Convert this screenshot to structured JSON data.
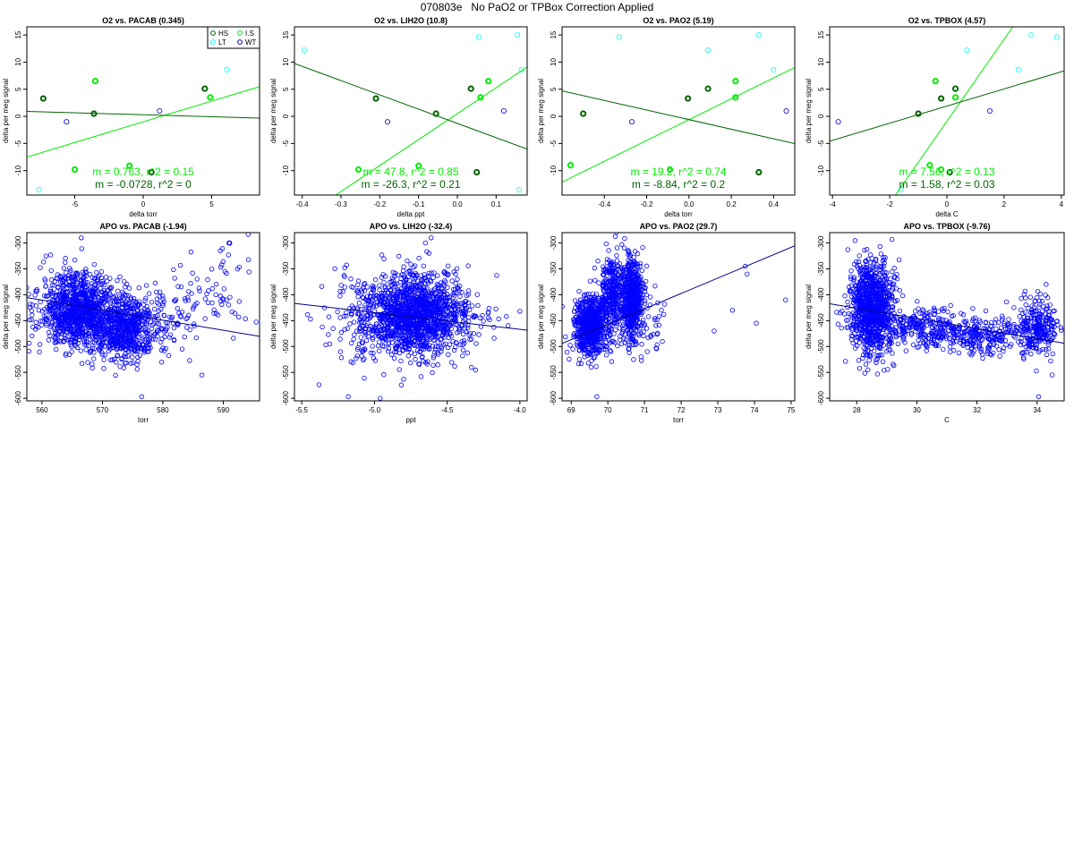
{
  "figure": {
    "title": "070803e   No PaO2 or TPBox Correction Applied"
  },
  "legend": {
    "entries": [
      {
        "label": "HS",
        "color": "#006400"
      },
      {
        "label": "I.S",
        "color": "#00ee00"
      },
      {
        "label": "LT",
        "color": "#00ffff"
      },
      {
        "label": "WT",
        "color": "#0000cd"
      }
    ]
  },
  "chart_data": [
    {
      "type": "scatter",
      "title": "O2 vs. PACAB (0.345)",
      "xlabel": "delta torr",
      "ylabel": "delta per meg signal",
      "xlim": [
        -8.5,
        8.5
      ],
      "ylim": [
        -14.5,
        16.5
      ],
      "xticks": [
        -5,
        0,
        5
      ],
      "yticks": [
        -10,
        -5,
        0,
        5,
        10,
        15
      ],
      "legend_position": "top-right",
      "series": [
        {
          "name": "HS",
          "color": "#006400",
          "bold": true,
          "x": [
            -7.3,
            -3.6,
            4.5,
            0.6
          ],
          "y": [
            3.3,
            0.5,
            5.1,
            -10.3
          ]
        },
        {
          "name": "I.S",
          "color": "#00ee00",
          "bold": true,
          "x": [
            -3.5,
            4.9,
            -5.0,
            -1.0
          ],
          "y": [
            6.5,
            3.5,
            -9.8,
            -9.1
          ]
        },
        {
          "name": "LT",
          "color": "#00ffff",
          "bold": false,
          "x": [
            -7.6,
            6.1
          ],
          "y": [
            -13.5,
            8.6
          ]
        },
        {
          "name": "WT",
          "color": "#0000cd",
          "bold": false,
          "x": [
            -5.6,
            1.2
          ],
          "y": [
            -1.0,
            1.0
          ]
        }
      ],
      "fits": [
        {
          "color": "#00ee00",
          "slope": 0.763,
          "intercept": -1.0,
          "label": "m = 0.763, r^2 = 0.15"
        },
        {
          "color": "#006400",
          "slope": -0.0728,
          "intercept": 0.3,
          "label": "m = -0.0728, r^2 = 0"
        }
      ]
    },
    {
      "type": "scatter",
      "title": "O2 vs. LIH2O (10.8)",
      "xlabel": "delta ppt",
      "ylabel": "delta per meg signal",
      "xlim": [
        -0.42,
        0.18
      ],
      "ylim": [
        -14.5,
        16.5
      ],
      "xticks": [
        -0.4,
        -0.3,
        -0.2,
        -0.1,
        0.0,
        0.1
      ],
      "yticks": [
        -10,
        -5,
        0,
        5,
        10,
        15
      ],
      "series": [
        {
          "name": "HS",
          "color": "#006400",
          "bold": true,
          "x": [
            -0.21,
            -0.055,
            0.035,
            0.05
          ],
          "y": [
            3.3,
            0.5,
            5.1,
            -10.3
          ]
        },
        {
          "name": "I.S",
          "color": "#00ee00",
          "bold": true,
          "x": [
            0.08,
            0.06,
            -0.255,
            -0.1
          ],
          "y": [
            6.5,
            3.5,
            -9.8,
            -9.1
          ]
        },
        {
          "name": "LT",
          "color": "#00ffff",
          "bold": false,
          "x": [
            -0.395,
            0.055,
            0.155,
            0.165,
            0.16
          ],
          "y": [
            12.2,
            14.6,
            15.0,
            8.6,
            -13.5
          ]
        },
        {
          "name": "WT",
          "color": "#0000cd",
          "bold": false,
          "x": [
            -0.18,
            0.12
          ],
          "y": [
            -1.0,
            1.0
          ]
        }
      ],
      "fits": [
        {
          "color": "#00ee00",
          "slope": 47.8,
          "intercept": 0.5,
          "label": "m = 47.8, r^2 = 0.85"
        },
        {
          "color": "#006400",
          "slope": -26.3,
          "intercept": -1.3,
          "label": "m = -26.3, r^2 = 0.21"
        }
      ]
    },
    {
      "type": "scatter",
      "title": "O2 vs. PAO2 (5.19)",
      "xlabel": "delta torr",
      "ylabel": "delta per meg signal",
      "xlim": [
        -0.6,
        0.5
      ],
      "ylim": [
        -14.5,
        16.5
      ],
      "xticks": [
        -0.4,
        -0.2,
        0.0,
        0.2,
        0.4
      ],
      "yticks": [
        -10,
        -5,
        0,
        5,
        10,
        15
      ],
      "series": [
        {
          "name": "HS",
          "color": "#006400",
          "bold": true,
          "x": [
            -0.5,
            -0.005,
            0.09,
            0.33
          ],
          "y": [
            0.5,
            3.3,
            5.1,
            -10.3
          ]
        },
        {
          "name": "I.S",
          "color": "#00ee00",
          "bold": true,
          "x": [
            0.22,
            0.22,
            -0.56,
            -0.09
          ],
          "y": [
            6.5,
            3.5,
            -9.0,
            -9.8
          ]
        },
        {
          "name": "LT",
          "color": "#00ffff",
          "bold": false,
          "x": [
            -0.33,
            0.09,
            0.33,
            0.4
          ],
          "y": [
            14.6,
            12.2,
            15.0,
            8.6
          ]
        },
        {
          "name": "WT",
          "color": "#0000cd",
          "bold": false,
          "x": [
            -0.27,
            0.46
          ],
          "y": [
            -1.0,
            1.0
          ]
        }
      ],
      "fits": [
        {
          "color": "#00ee00",
          "slope": 19.2,
          "intercept": -0.6,
          "label": "m = 19.2, r^2 = 0.74"
        },
        {
          "color": "#006400",
          "slope": -8.84,
          "intercept": -0.6,
          "label": "m = -8.84, r^2 = 0.2"
        }
      ]
    },
    {
      "type": "scatter",
      "title": "O2 vs. TPBOX (4.57)",
      "xlabel": "delta C",
      "ylabel": "delta per meg signal",
      "xlim": [
        -4.1,
        4.1
      ],
      "ylim": [
        -14.5,
        16.5
      ],
      "xticks": [
        -4,
        -2,
        0,
        2,
        4
      ],
      "yticks": [
        -10,
        -5,
        0,
        5,
        10,
        15
      ],
      "series": [
        {
          "name": "HS",
          "color": "#006400",
          "bold": true,
          "x": [
            -1.0,
            -0.2,
            0.3,
            0.1
          ],
          "y": [
            0.5,
            3.3,
            5.1,
            -10.3
          ]
        },
        {
          "name": "I.S",
          "color": "#00ee00",
          "bold": true,
          "x": [
            -0.4,
            0.3,
            -0.6,
            -0.2
          ],
          "y": [
            6.5,
            3.5,
            -9.0,
            -9.8
          ]
        },
        {
          "name": "LT",
          "color": "#00ffff",
          "bold": false,
          "x": [
            -1.6,
            0.7,
            2.5,
            2.95,
            3.85
          ],
          "y": [
            -13.5,
            12.2,
            8.6,
            15.0,
            14.6
          ]
        },
        {
          "name": "WT",
          "color": "#0000cd",
          "bold": false,
          "x": [
            -3.8,
            1.5
          ],
          "y": [
            -1.0,
            1.0
          ]
        }
      ],
      "fits": [
        {
          "color": "#00ee00",
          "slope": 7.56,
          "intercept": -0.9,
          "label": "m = 7.56, r^2 = 0.13"
        },
        {
          "color": "#006400",
          "slope": 1.58,
          "intercept": 1.9,
          "label": "m = 1.58, r^2 = 0.03"
        }
      ]
    },
    {
      "type": "scatter",
      "title": "APO vs. PACAB (-1.94)",
      "xlabel": "torr",
      "ylabel": "delta per meg signal",
      "xlim": [
        557.5,
        596
      ],
      "ylim": [
        -605,
        -280
      ],
      "xticks": [
        560,
        570,
        580,
        590
      ],
      "yticks": [
        -600,
        -550,
        -500,
        -450,
        -400,
        -350,
        -300
      ],
      "series": [
        {
          "name": "APO",
          "color": "#0000ff",
          "clusters": [
            {
              "n": 1000,
              "cx": 566,
              "sx": 3.2,
              "cy": -430,
              "sy": 35
            },
            {
              "n": 600,
              "cx": 573.5,
              "sx": 2.8,
              "cy": -465,
              "sy": 30
            },
            {
              "n": 90,
              "cx": 580,
              "sx": 3.5,
              "cy": -440,
              "sy": 40
            },
            {
              "n": 60,
              "cx": 589,
              "sx": 3.2,
              "cy": -390,
              "sy": 40
            }
          ],
          "x": [
            576.5,
            559.5,
            566.5
          ],
          "y": [
            -597,
            -430,
            -290
          ]
        }
      ],
      "fits": [
        {
          "color": "#00008b",
          "slope": -1.94,
          "intercept": 676
        }
      ]
    },
    {
      "type": "scatter",
      "title": "APO vs. LIH2O (-32.4)",
      "xlabel": "ppt",
      "ylabel": "delta per meg signal",
      "xlim": [
        -5.55,
        -3.95
      ],
      "ylim": [
        -605,
        -280
      ],
      "xticks": [
        -5.5,
        -5.0,
        -4.5,
        -4.0
      ],
      "yticks": [
        -600,
        -550,
        -500,
        -450,
        -400,
        -350,
        -300
      ],
      "series": [
        {
          "name": "APO",
          "color": "#0000ff",
          "clusters": [
            {
              "n": 1500,
              "cx": -4.72,
              "sx": 0.19,
              "cy": -440,
              "sy": 38
            },
            {
              "n": 60,
              "cx": -5.2,
              "sx": 0.2,
              "cy": -440,
              "sy": 60
            }
          ],
          "x": [
            -5.18,
            -4.0,
            -4.61,
            -4.65
          ],
          "y": [
            -597,
            -432,
            -290,
            -300
          ]
        }
      ],
      "fits": [
        {
          "color": "#00008b",
          "slope": -32.4,
          "intercept": -596.5
        }
      ]
    },
    {
      "type": "scatter",
      "title": "APO vs. PAO2 (29.7)",
      "xlabel": "torr",
      "ylabel": "delta per meg signal",
      "xlim": [
        68.75,
        75.1
      ],
      "ylim": [
        -605,
        -280
      ],
      "xticks": [
        69,
        70,
        71,
        72,
        73,
        74,
        75
      ],
      "yticks": [
        -600,
        -550,
        -500,
        -450,
        -400,
        -350,
        -300
      ],
      "series": [
        {
          "name": "APO",
          "color": "#0000ff",
          "clusters": [
            {
              "n": 650,
              "cx": 69.5,
              "sx": 0.22,
              "cy": -460,
              "sy": 28
            },
            {
              "n": 350,
              "cx": 70.1,
              "sx": 0.18,
              "cy": -400,
              "sy": 45
            },
            {
              "n": 600,
              "cx": 70.65,
              "sx": 0.14,
              "cy": -410,
              "sy": 40
            },
            {
              "n": 40,
              "cx": 71.2,
              "sx": 0.25,
              "cy": -445,
              "sy": 35
            }
          ],
          "x": [
            69.7,
            72.9,
            73.4,
            73.75,
            73.8,
            74.05,
            74.85
          ],
          "y": [
            -597,
            -470,
            -430,
            -345,
            -360,
            -455,
            -410
          ]
        }
      ],
      "fits": [
        {
          "color": "#00008b",
          "slope": 29.7,
          "intercept": -2536
        }
      ]
    },
    {
      "type": "scatter",
      "title": "APO vs. TPBOX (-9.76)",
      "xlabel": "C",
      "ylabel": "delta per meg signal",
      "xlim": [
        27.1,
        34.9
      ],
      "ylim": [
        -605,
        -280
      ],
      "xticks": [
        28,
        30,
        32,
        34
      ],
      "yticks": [
        -600,
        -550,
        -500,
        -450,
        -400,
        -350,
        -300
      ],
      "series": [
        {
          "name": "APO",
          "color": "#0000ff",
          "clusters": [
            {
              "n": 950,
              "cx": 28.5,
              "sx": 0.35,
              "cy": -425,
              "sy": 45
            },
            {
              "n": 250,
              "cx": 30.2,
              "sx": 0.7,
              "cy": -465,
              "sy": 18
            },
            {
              "n": 250,
              "cx": 32.3,
              "sx": 0.8,
              "cy": -480,
              "sy": 20
            },
            {
              "n": 250,
              "cx": 34.0,
              "sx": 0.35,
              "cy": -460,
              "sy": 25
            }
          ],
          "x": [
            34.05,
            34.5,
            34.3,
            27.8
          ],
          "y": [
            -597,
            -555,
            -380,
            -365
          ]
        }
      ],
      "fits": [
        {
          "color": "#00008b",
          "slope": -9.76,
          "intercept": -153
        }
      ]
    }
  ]
}
